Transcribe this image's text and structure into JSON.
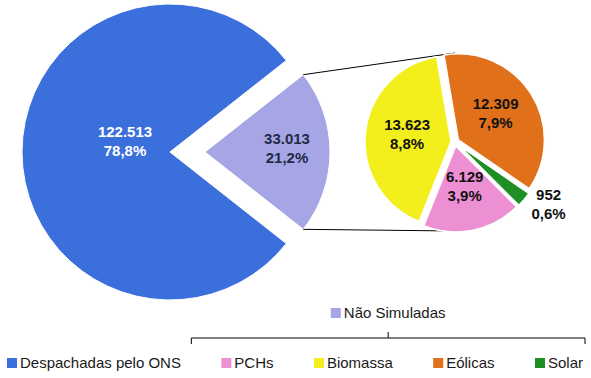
{
  "chart_data": [
    {
      "type": "pie",
      "categories": [
        "Despachadas pelo ONS",
        "Não Simuladas"
      ],
      "values": [
        122513,
        33013
      ],
      "value_labels": [
        "122.513",
        "33.013"
      ],
      "percentages": [
        78.8,
        21.2
      ],
      "percentage_labels": [
        "78,8%",
        "21,2%"
      ],
      "colors": [
        "#3b6fdc",
        "#a6a6e6"
      ],
      "data_labels": true,
      "legend": "bottom"
    },
    {
      "type": "pie",
      "categories": [
        "PCHs",
        "Biomassa",
        "Eólicas",
        "Solar"
      ],
      "values": [
        6129,
        13623,
        12309,
        952
      ],
      "value_labels": [
        "6.129",
        "13.623",
        "12.309",
        "952"
      ],
      "percentages": [
        3.9,
        8.8,
        7.9,
        0.6
      ],
      "percentage_labels": [
        "3,9%",
        "8,8%",
        "7,9%",
        "0,6%"
      ],
      "colors": [
        "#ec8fd3",
        "#f2ef1c",
        "#e0701a",
        "#1e8f24"
      ],
      "data_labels": true,
      "legend": "bottom"
    }
  ]
}
